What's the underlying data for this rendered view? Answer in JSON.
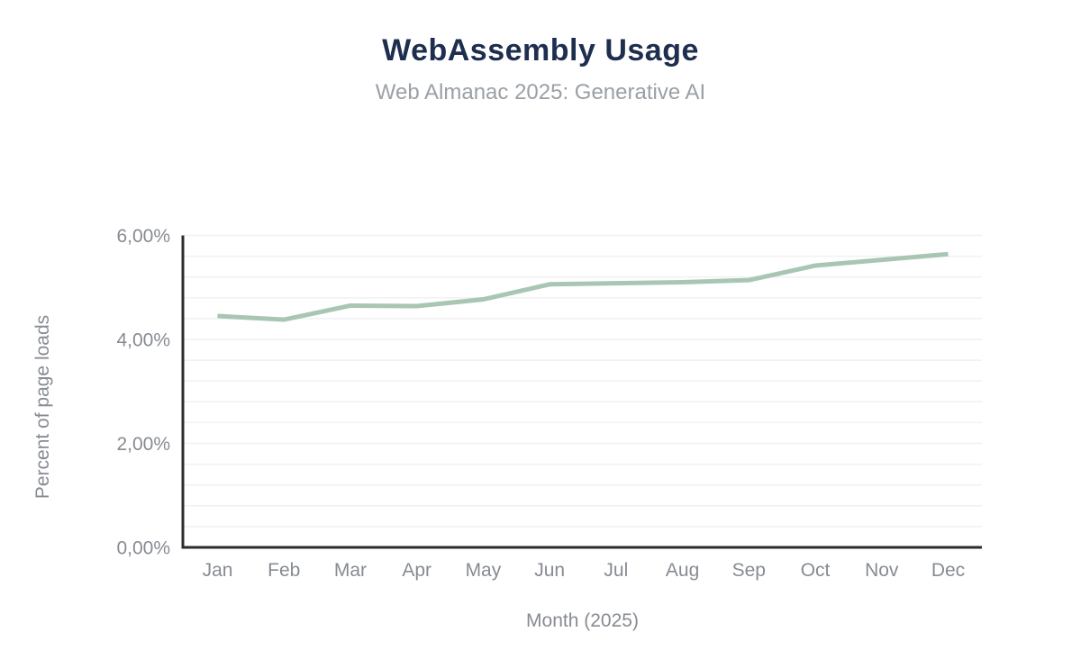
{
  "chart_data": {
    "type": "line",
    "title": "WebAssembly Usage",
    "subtitle": "Web Almanac 2025: Generative AI",
    "xlabel": "Month (2025)",
    "ylabel": "Percent of page loads",
    "categories": [
      "Jan",
      "Feb",
      "Mar",
      "Apr",
      "May",
      "Jun",
      "Jul",
      "Aug",
      "Sep",
      "Oct",
      "Nov",
      "Dec"
    ],
    "values": [
      4.45,
      4.38,
      4.65,
      4.64,
      4.77,
      5.06,
      5.08,
      5.1,
      5.14,
      5.42,
      5.53,
      5.64
    ],
    "unit": "percent of page loads",
    "ylim": [
      0,
      6
    ],
    "y_major_ticks": [
      0,
      2,
      4,
      6
    ],
    "y_major_tick_labels": [
      "0,00%",
      "2,00%",
      "4,00%",
      "6,00%"
    ],
    "y_minor_step": 0.4,
    "grid": "horizontal-minor",
    "legend": "none",
    "colors": {
      "title": "#1e2e4f",
      "subtitle": "#9aa0a6",
      "axis_text": "#878b92",
      "axis_line": "#2b2b2b",
      "grid_line": "#f1f1f3",
      "line": "#a9c6b3"
    }
  }
}
